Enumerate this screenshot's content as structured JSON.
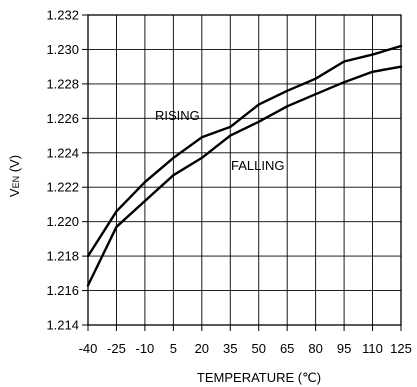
{
  "chart_data": {
    "type": "line",
    "title": "",
    "xlabel": "TEMPERATURE (℃)",
    "ylabel_main": "V",
    "ylabel_sub": "EN",
    "ylabel_unit": " (V)",
    "xlim": [
      -40,
      125
    ],
    "ylim": [
      1.214,
      1.232
    ],
    "grid": true,
    "legend": "none",
    "x_tick_labels": [
      "-40",
      "-25",
      "-10",
      "5",
      "20",
      "35",
      "50",
      "65",
      "80",
      "95",
      "110",
      "125"
    ],
    "y_tick_labels": [
      "1.214",
      "1.216",
      "1.218",
      "1.220",
      "1.222",
      "1.224",
      "1.226",
      "1.228",
      "1.230",
      "1.232"
    ],
    "annotations": [
      "RISING",
      "FALLING"
    ],
    "series": [
      {
        "name": "RISING",
        "x": [
          -40,
          -25,
          -10,
          5,
          20,
          35,
          50,
          65,
          80,
          95,
          110,
          125
        ],
        "y": [
          1.218,
          1.2206,
          1.2223,
          1.2237,
          1.2249,
          1.2255,
          1.2268,
          1.2276,
          1.2283,
          1.2293,
          1.2297,
          1.2302
        ]
      },
      {
        "name": "FALLING",
        "x": [
          -40,
          -25,
          -10,
          5,
          20,
          35,
          50,
          65,
          80,
          95,
          110,
          125
        ],
        "y": [
          1.2163,
          1.2197,
          1.2212,
          1.2227,
          1.2237,
          1.225,
          1.2258,
          1.2267,
          1.2274,
          1.2281,
          1.2287,
          1.229
        ]
      }
    ],
    "line_color": "#000000",
    "grid_color": "#000000"
  }
}
